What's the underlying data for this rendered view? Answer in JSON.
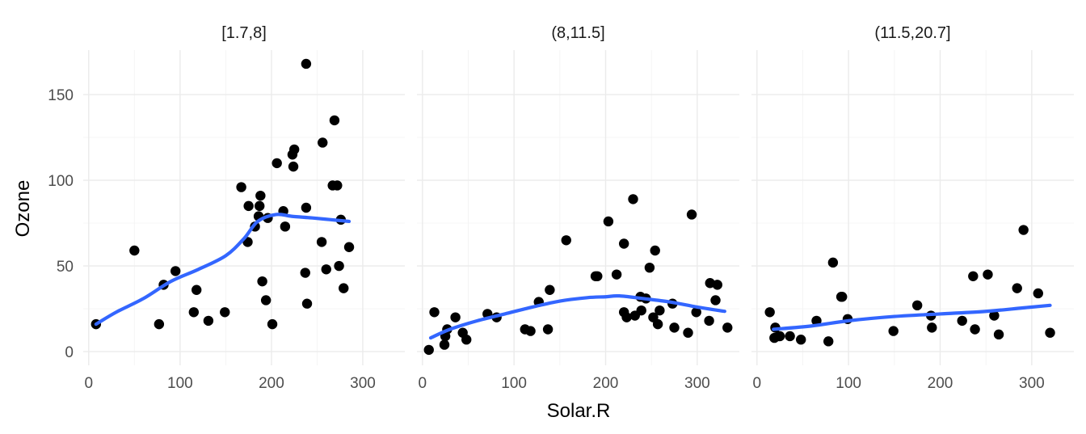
{
  "chart_data": {
    "type": "scatter",
    "xlabel": "Solar.R",
    "ylabel": "Ozone",
    "xlim": [
      -6,
      346
    ],
    "ylim": [
      -8,
      176
    ],
    "x_ticks": [
      0,
      100,
      200,
      300
    ],
    "y_ticks": [
      0,
      50,
      100,
      150
    ],
    "x_tick_labels": [
      "0",
      "100",
      "200",
      "300"
    ],
    "y_tick_labels": [
      "0",
      "50",
      "100",
      "150"
    ],
    "grid": true,
    "point_color": "#000000",
    "smooth_color": "#3366ff",
    "panels": [
      {
        "strip": "[1.7,8]",
        "points": [
          [
            8,
            16
          ],
          [
            50,
            59
          ],
          [
            77,
            16
          ],
          [
            82,
            39
          ],
          [
            95,
            47
          ],
          [
            115,
            23
          ],
          [
            118,
            36
          ],
          [
            131,
            18
          ],
          [
            149,
            23
          ],
          [
            167,
            96
          ],
          [
            174,
            64
          ],
          [
            175,
            85
          ],
          [
            182,
            73
          ],
          [
            186,
            79
          ],
          [
            187,
            85
          ],
          [
            188,
            91
          ],
          [
            190,
            41
          ],
          [
            194,
            30
          ],
          [
            196,
            78
          ],
          [
            201,
            16
          ],
          [
            206,
            110
          ],
          [
            213,
            82
          ],
          [
            215,
            73
          ],
          [
            223,
            115
          ],
          [
            224,
            108
          ],
          [
            225,
            118
          ],
          [
            237,
            46
          ],
          [
            238,
            84
          ],
          [
            238,
            168
          ],
          [
            239,
            28
          ],
          [
            255,
            64
          ],
          [
            256,
            122
          ],
          [
            260,
            48
          ],
          [
            267,
            97
          ],
          [
            269,
            135
          ],
          [
            272,
            97
          ],
          [
            274,
            50
          ],
          [
            276,
            77
          ],
          [
            279,
            37
          ],
          [
            285,
            61
          ]
        ],
        "smooth": [
          [
            8,
            16
          ],
          [
            30,
            23
          ],
          [
            60,
            31
          ],
          [
            90,
            41
          ],
          [
            120,
            48
          ],
          [
            150,
            56
          ],
          [
            170,
            66
          ],
          [
            185,
            76
          ],
          [
            205,
            80
          ],
          [
            222,
            79
          ],
          [
            245,
            78
          ],
          [
            265,
            77
          ],
          [
            285,
            76
          ]
        ]
      },
      {
        "strip": "(8,11.5]",
        "points": [
          [
            7,
            1
          ],
          [
            13,
            23
          ],
          [
            24,
            4
          ],
          [
            25,
            9
          ],
          [
            27,
            13
          ],
          [
            36,
            20
          ],
          [
            44,
            11
          ],
          [
            48,
            7
          ],
          [
            71,
            22
          ],
          [
            81,
            20
          ],
          [
            112,
            13
          ],
          [
            118,
            12
          ],
          [
            127,
            29
          ],
          [
            137,
            13
          ],
          [
            139,
            36
          ],
          [
            157,
            65
          ],
          [
            189,
            44
          ],
          [
            191,
            44
          ],
          [
            203,
            76
          ],
          [
            212,
            45
          ],
          [
            220,
            63
          ],
          [
            220,
            23
          ],
          [
            223,
            20
          ],
          [
            230,
            89
          ],
          [
            232,
            21
          ],
          [
            238,
            32
          ],
          [
            239,
            24
          ],
          [
            244,
            31
          ],
          [
            248,
            49
          ],
          [
            252,
            20
          ],
          [
            254,
            59
          ],
          [
            257,
            16
          ],
          [
            259,
            24
          ],
          [
            273,
            28
          ],
          [
            275,
            14
          ],
          [
            290,
            11
          ],
          [
            294,
            80
          ],
          [
            299,
            23
          ],
          [
            313,
            18
          ],
          [
            314,
            40
          ],
          [
            320,
            30
          ],
          [
            322,
            39
          ],
          [
            333,
            14
          ]
        ],
        "smooth": [
          [
            9,
            8
          ],
          [
            30,
            13
          ],
          [
            60,
            18
          ],
          [
            90,
            22
          ],
          [
            120,
            26
          ],
          [
            150,
            29.5
          ],
          [
            180,
            31.5
          ],
          [
            200,
            32
          ],
          [
            215,
            32.5
          ],
          [
            240,
            31
          ],
          [
            270,
            29
          ],
          [
            300,
            26
          ],
          [
            330,
            23.5
          ]
        ]
      },
      {
        "strip": "(11.5,20.7]",
        "points": [
          [
            14,
            23
          ],
          [
            19,
            8
          ],
          [
            20,
            14
          ],
          [
            24,
            9
          ],
          [
            25,
            9
          ],
          [
            36,
            9
          ],
          [
            48,
            7
          ],
          [
            65,
            18
          ],
          [
            78,
            6
          ],
          [
            83,
            52
          ],
          [
            92,
            32
          ],
          [
            93,
            32
          ],
          [
            99,
            19
          ],
          [
            149,
            12
          ],
          [
            175,
            27
          ],
          [
            190,
            21
          ],
          [
            191,
            14
          ],
          [
            224,
            18
          ],
          [
            236,
            44
          ],
          [
            238,
            13
          ],
          [
            252,
            45
          ],
          [
            259,
            21
          ],
          [
            264,
            10
          ],
          [
            284,
            37
          ],
          [
            291,
            71
          ],
          [
            307,
            34
          ],
          [
            320,
            11
          ]
        ],
        "smooth": [
          [
            18,
            13
          ],
          [
            60,
            15
          ],
          [
            100,
            18
          ],
          [
            150,
            20.5
          ],
          [
            200,
            22
          ],
          [
            250,
            23.5
          ],
          [
            290,
            25.5
          ],
          [
            320,
            27
          ]
        ]
      }
    ]
  }
}
